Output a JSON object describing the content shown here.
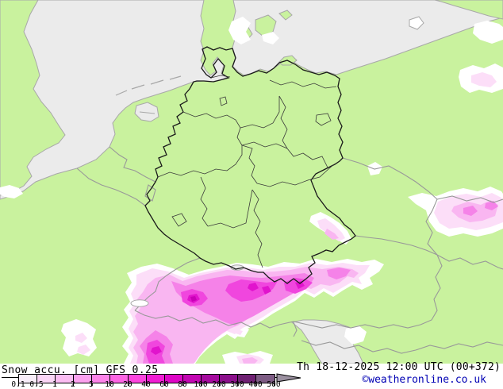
{
  "legend": {
    "title": "Snow accu. [cm] GFS 0.25",
    "parameter": "Snow accu.",
    "unit": "cm",
    "model": "GFS 0.25",
    "scale_ticks": [
      "0.1",
      "0.5",
      "1",
      "2",
      "5",
      "10",
      "20",
      "40",
      "60",
      "80",
      "100",
      "200",
      "300",
      "400",
      "500"
    ],
    "scale_colors": [
      "#f7ecf8",
      "#fad5f6",
      "#fbbcf2",
      "#fba0ee",
      "#fc83e9",
      "#fc64e3",
      "#fc45de",
      "#f11dd4",
      "#de06c6",
      "#c207b2",
      "#a50b9e",
      "#8b108b",
      "#6f2173",
      "#7d5c84"
    ],
    "arrow_color": "#9b90a0"
  },
  "status_bar": {
    "timestamp": "Th 18-12-2025 12:00 UTC (00+372)",
    "copyright": "©weatheronline.co.uk",
    "copyright_color": "#0000b4"
  },
  "map": {
    "colors": {
      "land": "#c9f29e",
      "sea": "#ebebeb",
      "coast": "#a8a8a8",
      "country_border": "#999999",
      "germany_border": "#1a1a1a",
      "state_border": "#3a3a3a",
      "lake": "#ffffff"
    },
    "snow_levels": [
      "#ffffff",
      "#fcdef8",
      "#f9b6f1",
      "#f582e8",
      "#f046de",
      "#e114cd",
      "#c801b6"
    ]
  }
}
